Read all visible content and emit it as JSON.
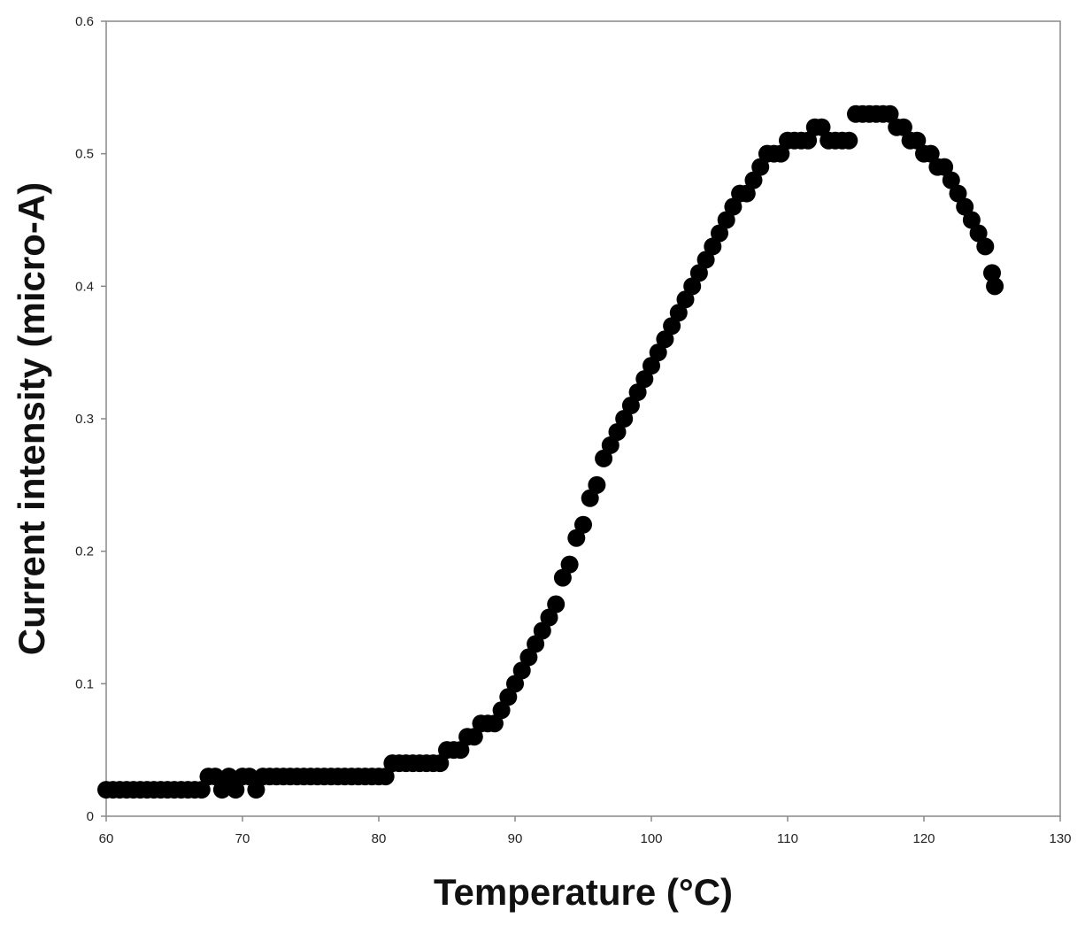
{
  "chart_data": {
    "type": "scatter",
    "x_label": "Temperature (°C)",
    "y_label": "Current intensity (micro-A)",
    "xlim": [
      60,
      130
    ],
    "xticks": [
      60,
      70,
      80,
      90,
      100,
      110,
      120,
      130
    ],
    "ylim": [
      0,
      0.6
    ],
    "yticks": [
      0,
      0.1,
      0.2,
      0.3,
      0.4,
      0.5,
      0.6
    ],
    "color": "#000000",
    "x": [
      60,
      60.5,
      61,
      61.5,
      62,
      62.5,
      63,
      63.5,
      64,
      64.5,
      65,
      65.5,
      66,
      66.5,
      67,
      67.5,
      68,
      68.5,
      69,
      69.5,
      70,
      70.5,
      71,
      71.5,
      72,
      72.5,
      73,
      73.5,
      74,
      74.5,
      75,
      75.5,
      76,
      76.5,
      77,
      77.5,
      78,
      78.5,
      79,
      79.5,
      80,
      80.5,
      81,
      81.5,
      82,
      82.5,
      83,
      83.5,
      84,
      84.5,
      85,
      85.5,
      86,
      86.5,
      87,
      87.5,
      88,
      88.5,
      89,
      89.5,
      90,
      90.5,
      91,
      91.5,
      92,
      92.5,
      93,
      93.5,
      94,
      94.5,
      95,
      95.5,
      96,
      96.5,
      97,
      97.5,
      98,
      98.5,
      99,
      99.5,
      100,
      100.5,
      101,
      101.5,
      102,
      102.5,
      103,
      103.5,
      104,
      104.5,
      105,
      105.5,
      106,
      106.5,
      107,
      107.5,
      108,
      108.5,
      109,
      109.5,
      110,
      110.5,
      111,
      111.5,
      112,
      112.5,
      113,
      113.5,
      114,
      114.5,
      115,
      115.5,
      116,
      116.5,
      117,
      117.5,
      118,
      118.5,
      119,
      119.5,
      120,
      120.5,
      121,
      121.5,
      122,
      122.5,
      123,
      123.5,
      124,
      124.5,
      125,
      125.2
    ],
    "values": [
      0.02,
      0.02,
      0.02,
      0.02,
      0.02,
      0.02,
      0.02,
      0.02,
      0.02,
      0.02,
      0.02,
      0.02,
      0.02,
      0.02,
      0.02,
      0.03,
      0.03,
      0.02,
      0.03,
      0.02,
      0.03,
      0.03,
      0.02,
      0.03,
      0.03,
      0.03,
      0.03,
      0.03,
      0.03,
      0.03,
      0.03,
      0.03,
      0.03,
      0.03,
      0.03,
      0.03,
      0.03,
      0.03,
      0.03,
      0.03,
      0.03,
      0.03,
      0.04,
      0.04,
      0.04,
      0.04,
      0.04,
      0.04,
      0.04,
      0.04,
      0.05,
      0.05,
      0.05,
      0.06,
      0.06,
      0.07,
      0.07,
      0.07,
      0.08,
      0.09,
      0.1,
      0.11,
      0.12,
      0.13,
      0.14,
      0.15,
      0.16,
      0.18,
      0.19,
      0.21,
      0.22,
      0.24,
      0.25,
      0.27,
      0.28,
      0.29,
      0.3,
      0.31,
      0.32,
      0.33,
      0.34,
      0.35,
      0.36,
      0.37,
      0.38,
      0.39,
      0.4,
      0.41,
      0.42,
      0.43,
      0.44,
      0.45,
      0.46,
      0.47,
      0.47,
      0.48,
      0.49,
      0.5,
      0.5,
      0.5,
      0.51,
      0.51,
      0.51,
      0.51,
      0.52,
      0.52,
      0.51,
      0.51,
      0.51,
      0.51,
      0.53,
      0.53,
      0.53,
      0.53,
      0.53,
      0.53,
      0.52,
      0.52,
      0.51,
      0.51,
      0.5,
      0.5,
      0.49,
      0.49,
      0.48,
      0.47,
      0.46,
      0.45,
      0.44,
      0.43,
      0.41,
      0.4
    ]
  }
}
